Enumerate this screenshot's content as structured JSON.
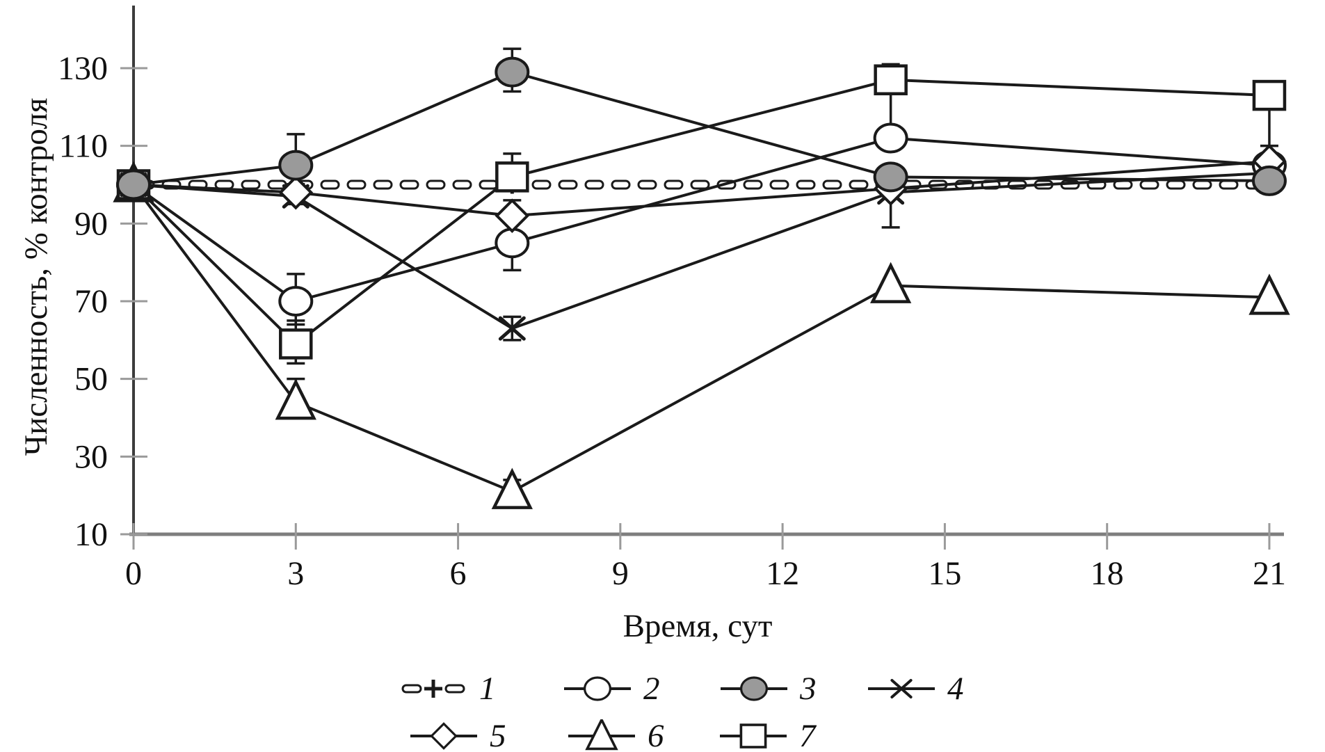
{
  "figure": {
    "background": "#ffffff",
    "line_color": "#1a1a1a",
    "gray_fill": "#9a9a9a",
    "axis_gray": "#7e7e7e",
    "tick_gray": "#9a9a9a"
  },
  "y_axis": {
    "title": "Численность, % контроля",
    "ticks": [
      130,
      110,
      90,
      70,
      50,
      30,
      10
    ],
    "range": [
      10,
      135
    ]
  },
  "x_axis": {
    "title": "Время, сут",
    "ticks": [
      0,
      3,
      6,
      9,
      12,
      15,
      18,
      21
    ],
    "range": [
      0,
      21
    ]
  },
  "chart_data": {
    "type": "line",
    "x": [
      0,
      3,
      7,
      14,
      21
    ],
    "xlabel": "Время, сут",
    "ylabel": "Численность, % контроля",
    "ylim": [
      10,
      135
    ],
    "xlim": [
      0,
      21
    ],
    "grid": false,
    "legend_position": "bottom",
    "series": [
      {
        "id": 1,
        "label": "1",
        "marker": "plus",
        "linestyle": "dashed",
        "values": [
          100,
          100,
          100,
          100,
          100
        ],
        "err_lo": [
          0,
          0,
          0,
          0,
          0
        ],
        "err_hi": [
          0,
          0,
          0,
          0,
          0
        ]
      },
      {
        "id": 2,
        "label": "2",
        "marker": "circle-open",
        "linestyle": "solid",
        "values": [
          100,
          70,
          85,
          112,
          105
        ],
        "err_lo": [
          0,
          6,
          7,
          0,
          0
        ],
        "err_hi": [
          0,
          7,
          3,
          3,
          0
        ]
      },
      {
        "id": 3,
        "label": "3",
        "marker": "circle-filled",
        "linestyle": "solid",
        "values": [
          100,
          105,
          129,
          102,
          101
        ],
        "err_lo": [
          0,
          0,
          5,
          0,
          0
        ],
        "err_hi": [
          0,
          8,
          6,
          0,
          0
        ]
      },
      {
        "id": 4,
        "label": "4",
        "marker": "x-cross",
        "linestyle": "solid",
        "values": [
          100,
          97,
          63,
          98,
          103
        ],
        "err_lo": [
          0,
          0,
          3,
          9,
          0
        ],
        "err_hi": [
          0,
          0,
          3,
          0,
          0
        ]
      },
      {
        "id": 5,
        "label": "5",
        "marker": "diamond-open",
        "linestyle": "solid",
        "values": [
          100,
          98,
          92,
          99,
          106
        ],
        "err_lo": [
          0,
          3,
          0,
          0,
          0
        ],
        "err_hi": [
          0,
          0,
          4,
          0,
          0
        ]
      },
      {
        "id": 6,
        "label": "6",
        "marker": "triangle-open",
        "linestyle": "solid",
        "values": [
          100,
          44,
          21,
          74,
          71
        ],
        "err_lo": [
          0,
          4,
          0,
          0,
          0
        ],
        "err_hi": [
          0,
          6,
          3,
          0,
          0
        ]
      },
      {
        "id": 7,
        "label": "7",
        "marker": "square-open",
        "linestyle": "solid",
        "values": [
          100,
          59,
          102,
          127,
          123
        ],
        "err_lo": [
          0,
          5,
          0,
          12,
          13
        ],
        "err_hi": [
          0,
          6,
          6,
          4,
          0
        ]
      }
    ]
  },
  "legend": {
    "items": [
      {
        "label": "1",
        "marker": "plus",
        "linestyle": "dashed"
      },
      {
        "label": "2",
        "marker": "circle-open",
        "linestyle": "solid"
      },
      {
        "label": "3",
        "marker": "circle-filled",
        "linestyle": "solid"
      },
      {
        "label": "4",
        "marker": "x-cross",
        "linestyle": "solid"
      },
      {
        "label": "5",
        "marker": "diamond-open",
        "linestyle": "solid"
      },
      {
        "label": "6",
        "marker": "triangle-open",
        "linestyle": "solid"
      },
      {
        "label": "7",
        "marker": "square-open",
        "linestyle": "solid"
      }
    ]
  }
}
